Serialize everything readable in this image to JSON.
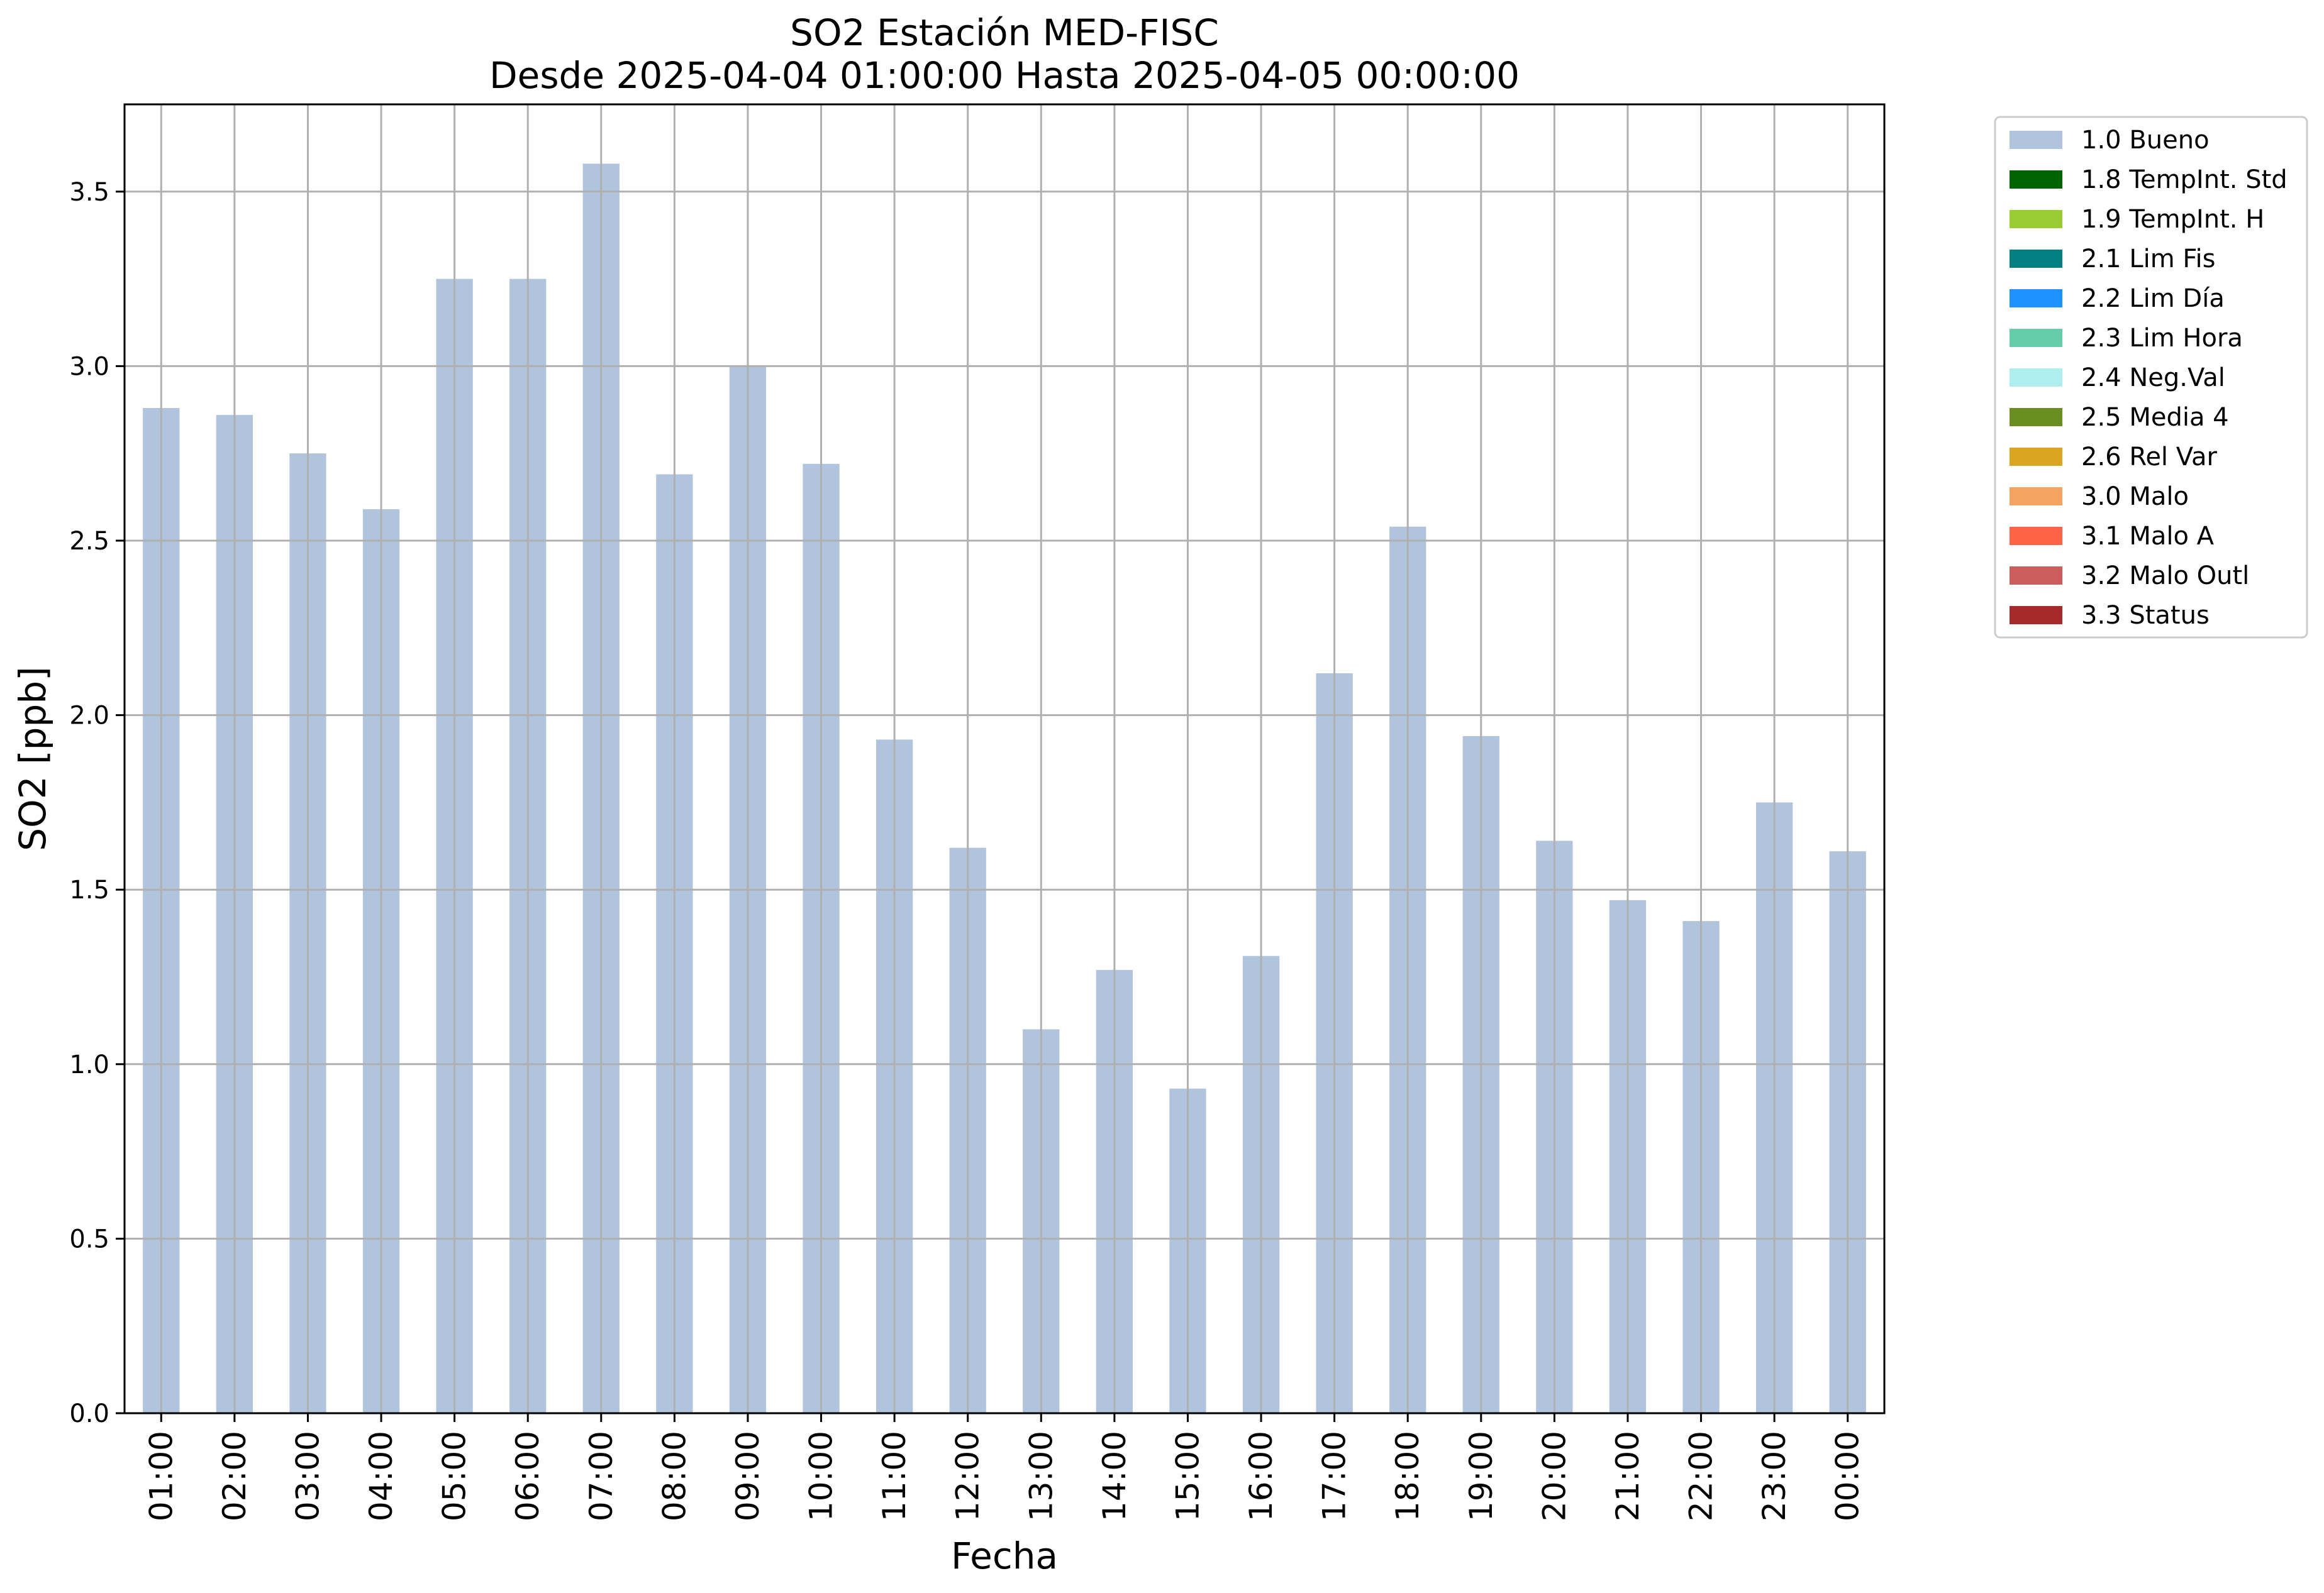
{
  "chart_data": {
    "type": "bar",
    "title": "SO2 Estación MED-FISC",
    "subtitle": "Desde 2025-04-04 01:00:00 Hasta 2025-04-05 00:00:00",
    "xlabel": "Fecha",
    "ylabel": "SO2 [ppb]",
    "ylim": [
      0,
      3.75
    ],
    "yticks": [
      "0.0",
      "0.5",
      "1.0",
      "1.5",
      "2.0",
      "2.5",
      "3.0",
      "3.5"
    ],
    "grid": true,
    "legend_position": "outside-top-right",
    "bar_color": "#b0c4de",
    "categories": [
      "01:00",
      "02:00",
      "03:00",
      "04:00",
      "05:00",
      "06:00",
      "07:00",
      "08:00",
      "09:00",
      "10:00",
      "11:00",
      "12:00",
      "13:00",
      "14:00",
      "15:00",
      "16:00",
      "17:00",
      "18:00",
      "19:00",
      "20:00",
      "21:00",
      "22:00",
      "23:00",
      "00:00"
    ],
    "series": [
      {
        "name": "1.0 Bueno",
        "values": [
          2.88,
          2.86,
          2.75,
          2.59,
          3.25,
          3.25,
          3.58,
          2.69,
          3.0,
          2.72,
          1.93,
          1.62,
          1.1,
          1.27,
          0.93,
          1.31,
          2.12,
          2.54,
          1.94,
          1.64,
          1.47,
          1.41,
          1.75,
          1.61
        ]
      }
    ],
    "legend": [
      {
        "label": "1.0 Bueno",
        "color": "#b0c4de"
      },
      {
        "label": "1.8 TempInt. Std",
        "color": "#006400"
      },
      {
        "label": "1.9 TempInt. H",
        "color": "#9acd32"
      },
      {
        "label": "2.1 Lim Fis",
        "color": "#008080"
      },
      {
        "label": "2.2 Lim Día",
        "color": "#1e90ff"
      },
      {
        "label": "2.3 Lim Hora",
        "color": "#66cdaa"
      },
      {
        "label": "2.4 Neg.Val",
        "color": "#afeeee"
      },
      {
        "label": "2.5 Media 4",
        "color": "#6b8e23"
      },
      {
        "label": "2.6 Rel Var",
        "color": "#daa520"
      },
      {
        "label": "3.0 Malo",
        "color": "#f4a460"
      },
      {
        "label": "3.1 Malo A",
        "color": "#ff6347"
      },
      {
        "label": "3.2 Malo Outl",
        "color": "#cd5c5c"
      },
      {
        "label": "3.3 Status",
        "color": "#a52a2a"
      }
    ]
  }
}
